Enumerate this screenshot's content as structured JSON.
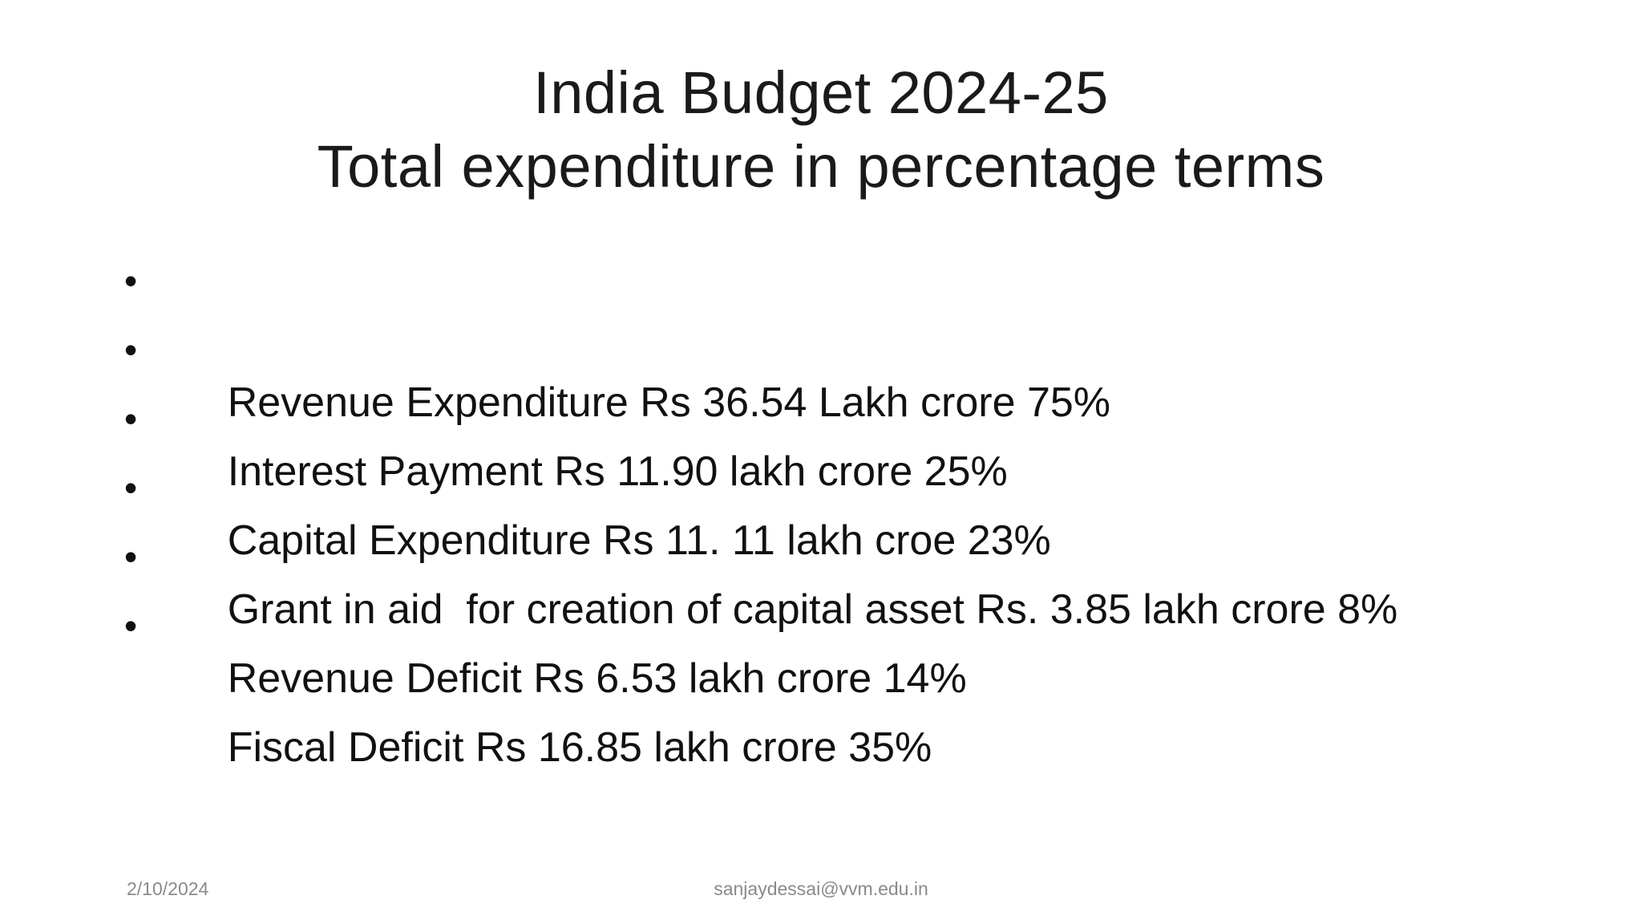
{
  "title": {
    "line1": "India Budget 2024-25",
    "line2": "Total expenditure in percentage terms"
  },
  "bullet_symbol": "•",
  "bullets": [
    "Revenue Expenditure Rs 36.54 Lakh crore 75%",
    "Interest Payment Rs 11.90 lakh crore 25%",
    "Capital Expenditure Rs 11. 11 lakh croe 23%",
    "Grant in aid  for creation of capital asset Rs. 3.85 lakh crore 8%",
    "Revenue Deficit Rs 6.53 lakh crore 14%",
    "Fiscal Deficit Rs 16.85 lakh crore 35%"
  ],
  "footer": {
    "date": "2/10/2024",
    "email": "sanjaydessai@vvm.edu.in"
  }
}
